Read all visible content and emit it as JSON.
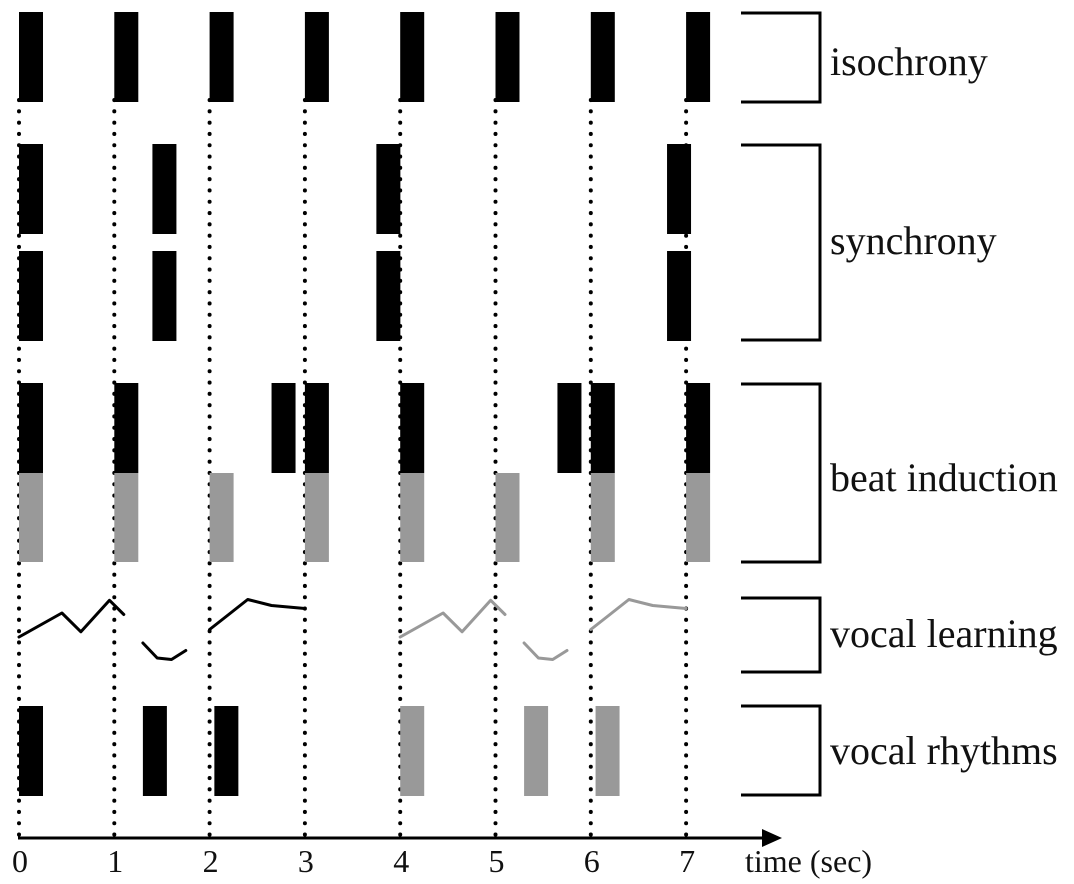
{
  "colors": {
    "black": "#000000",
    "gray": "#999999",
    "line": "#111111"
  },
  "time_axis": {
    "label": "time (sec)",
    "ticks": [
      "0",
      "1",
      "2",
      "3",
      "4",
      "5",
      "6",
      "7"
    ]
  },
  "rows": [
    {
      "id": "isochrony",
      "label": "isochrony",
      "bars": [
        {
          "t": 0.0,
          "color": "black"
        },
        {
          "t": 1.0,
          "color": "black"
        },
        {
          "t": 2.0,
          "color": "black"
        },
        {
          "t": 3.0,
          "color": "black"
        },
        {
          "t": 4.0,
          "color": "black"
        },
        {
          "t": 5.0,
          "color": "black"
        },
        {
          "t": 6.0,
          "color": "black"
        },
        {
          "t": 7.0,
          "color": "black"
        }
      ]
    },
    {
      "id": "synchrony",
      "label": "synchrony",
      "bars_upper": [
        {
          "t": 0.0,
          "color": "black"
        },
        {
          "t": 1.4,
          "color": "black"
        },
        {
          "t": 3.75,
          "color": "black"
        },
        {
          "t": 6.8,
          "color": "black"
        }
      ],
      "bars_lower": [
        {
          "t": 0.0,
          "color": "black"
        },
        {
          "t": 1.4,
          "color": "black"
        },
        {
          "t": 3.75,
          "color": "black"
        },
        {
          "t": 6.8,
          "color": "black"
        }
      ]
    },
    {
      "id": "beat-induction",
      "label": "beat induction",
      "bars_upper": [
        {
          "t": 0.0,
          "color": "black"
        },
        {
          "t": 1.0,
          "color": "black"
        },
        {
          "t": 2.65,
          "color": "black"
        },
        {
          "t": 3.0,
          "color": "black"
        },
        {
          "t": 4.0,
          "color": "black"
        },
        {
          "t": 5.65,
          "color": "black"
        },
        {
          "t": 6.0,
          "color": "black"
        },
        {
          "t": 7.0,
          "color": "black"
        }
      ],
      "bars_lower": [
        {
          "t": 0.0,
          "color": "gray"
        },
        {
          "t": 1.0,
          "color": "gray"
        },
        {
          "t": 2.0,
          "color": "gray"
        },
        {
          "t": 3.0,
          "color": "gray"
        },
        {
          "t": 4.0,
          "color": "gray"
        },
        {
          "t": 5.0,
          "color": "gray"
        },
        {
          "t": 6.0,
          "color": "gray"
        },
        {
          "t": 7.0,
          "color": "gray"
        }
      ]
    },
    {
      "id": "vocal-learning",
      "label": "vocal learning",
      "contours": [
        {
          "color": "black",
          "points": [
            [
              0.0,
              0.52
            ],
            [
              0.45,
              0.2
            ],
            [
              0.65,
              0.45
            ],
            [
              0.95,
              0.03
            ],
            [
              1.1,
              0.22
            ]
          ]
        },
        {
          "color": "black",
          "points": [
            [
              1.3,
              0.6
            ],
            [
              1.45,
              0.8
            ],
            [
              1.6,
              0.82
            ],
            [
              1.75,
              0.7
            ]
          ]
        },
        {
          "color": "black",
          "points": [
            [
              2.0,
              0.42
            ],
            [
              2.2,
              0.22
            ],
            [
              2.4,
              0.02
            ],
            [
              2.65,
              0.1
            ],
            [
              3.0,
              0.14
            ]
          ]
        },
        {
          "color": "gray",
          "points": [
            [
              4.0,
              0.52
            ],
            [
              4.45,
              0.2
            ],
            [
              4.65,
              0.45
            ],
            [
              4.95,
              0.03
            ],
            [
              5.1,
              0.22
            ]
          ]
        },
        {
          "color": "gray",
          "points": [
            [
              5.3,
              0.6
            ],
            [
              5.45,
              0.8
            ],
            [
              5.6,
              0.82
            ],
            [
              5.75,
              0.7
            ]
          ]
        },
        {
          "color": "gray",
          "points": [
            [
              6.0,
              0.42
            ],
            [
              6.2,
              0.22
            ],
            [
              6.4,
              0.02
            ],
            [
              6.65,
              0.1
            ],
            [
              7.0,
              0.14
            ]
          ]
        }
      ]
    },
    {
      "id": "vocal-rhythms",
      "label": "vocal rhythms",
      "bars": [
        {
          "t": 0.0,
          "color": "black"
        },
        {
          "t": 1.3,
          "color": "black"
        },
        {
          "t": 2.05,
          "color": "black"
        },
        {
          "t": 4.0,
          "color": "gray"
        },
        {
          "t": 5.3,
          "color": "gray"
        },
        {
          "t": 6.05,
          "color": "gray"
        }
      ]
    }
  ]
}
